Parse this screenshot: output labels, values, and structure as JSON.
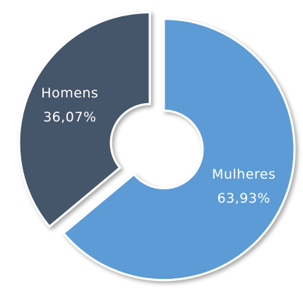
{
  "chart_data": {
    "type": "donut",
    "categories": [
      "Mulheres",
      "Homens"
    ],
    "values": [
      63.93,
      36.07
    ],
    "value_labels": [
      "63,93%",
      "36,07%"
    ],
    "colors": [
      "#5b9bd5",
      "#44546a"
    ]
  }
}
